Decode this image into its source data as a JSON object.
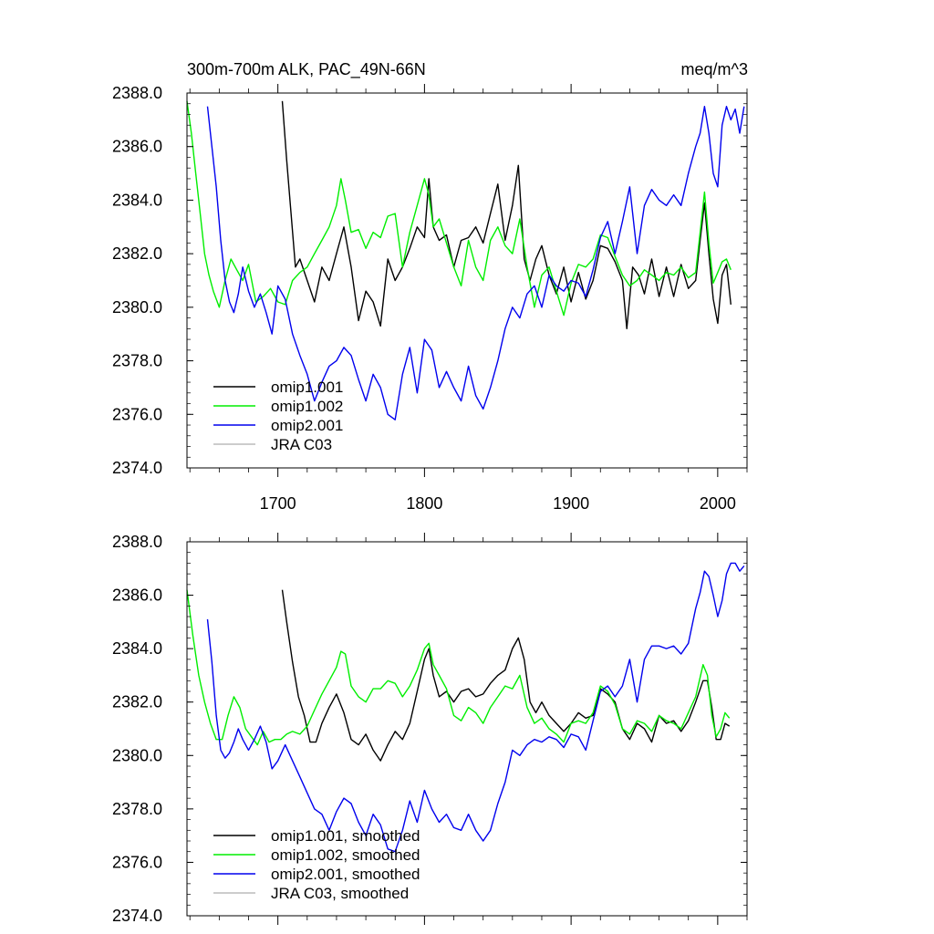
{
  "chart_data": [
    {
      "type": "line",
      "title": "300m-700m ALK, PAC_49N-66N",
      "units": "meq/m^3",
      "ylim": [
        2374.0,
        2388.0
      ],
      "xlim": [
        1638,
        2020
      ],
      "yticks": [
        "2388.0",
        "2386.0",
        "2384.0",
        "2382.0",
        "2380.0",
        "2378.0",
        "2376.0",
        "2374.0"
      ],
      "xticks": [
        "1700",
        "1800",
        "1900",
        "2000"
      ],
      "legend": [
        "omip1.001",
        "omip1.002",
        "omip2.001",
        "JRA C03"
      ],
      "series": [
        {
          "name": "omip1.001",
          "color": "#000000",
          "x": [
            1703,
            1706,
            1709,
            1712,
            1715,
            1720,
            1725,
            1730,
            1735,
            1740,
            1745,
            1750,
            1755,
            1760,
            1765,
            1770,
            1775,
            1780,
            1785,
            1790,
            1795,
            1800,
            1803,
            1806,
            1810,
            1815,
            1820,
            1825,
            1830,
            1835,
            1840,
            1845,
            1850,
            1855,
            1860,
            1864,
            1868,
            1872,
            1876,
            1880,
            1885,
            1890,
            1895,
            1900,
            1905,
            1910,
            1915,
            1920,
            1925,
            1930,
            1935,
            1938,
            1942,
            1946,
            1950,
            1955,
            1960,
            1965,
            1970,
            1975,
            1980,
            1985,
            1988,
            1991,
            1994,
            1997,
            2000,
            2003,
            2006,
            2009
          ],
          "y": [
            2387.7,
            2385.5,
            2383.5,
            2381.5,
            2381.8,
            2381.0,
            2380.2,
            2381.5,
            2381.0,
            2382.0,
            2383.0,
            2381.5,
            2379.5,
            2380.6,
            2380.2,
            2379.3,
            2381.8,
            2381.0,
            2381.5,
            2382.2,
            2383.0,
            2382.6,
            2384.8,
            2383.0,
            2382.5,
            2382.7,
            2381.5,
            2382.5,
            2382.6,
            2383.0,
            2382.4,
            2383.5,
            2384.6,
            2382.5,
            2383.8,
            2385.3,
            2381.8,
            2381.0,
            2381.8,
            2382.3,
            2381.2,
            2380.5,
            2381.5,
            2380.2,
            2381.3,
            2380.3,
            2381.0,
            2382.3,
            2382.2,
            2381.7,
            2381.0,
            2379.2,
            2381.5,
            2381.2,
            2380.5,
            2381.8,
            2380.4,
            2381.5,
            2380.4,
            2381.6,
            2380.7,
            2381.0,
            2382.5,
            2383.9,
            2382.0,
            2380.3,
            2379.4,
            2381.2,
            2381.6,
            2380.1
          ]
        },
        {
          "name": "omip1.002",
          "color": "#00ee00",
          "x": [
            1638,
            1641,
            1644,
            1647,
            1650,
            1653,
            1656,
            1660,
            1664,
            1668,
            1672,
            1676,
            1680,
            1685,
            1690,
            1695,
            1700,
            1705,
            1710,
            1715,
            1720,
            1725,
            1730,
            1735,
            1740,
            1743,
            1746,
            1750,
            1755,
            1760,
            1765,
            1770,
            1775,
            1780,
            1785,
            1790,
            1795,
            1800,
            1803,
            1806,
            1810,
            1815,
            1820,
            1825,
            1830,
            1835,
            1840,
            1845,
            1850,
            1855,
            1860,
            1865,
            1870,
            1875,
            1880,
            1885,
            1890,
            1895,
            1900,
            1905,
            1910,
            1915,
            1920,
            1925,
            1930,
            1935,
            1940,
            1945,
            1950,
            1955,
            1960,
            1965,
            1970,
            1975,
            1980,
            1985,
            1988,
            1991,
            1994,
            1997,
            2000,
            2003,
            2006,
            2009
          ],
          "y": [
            2387.7,
            2386.5,
            2385.0,
            2383.5,
            2382.0,
            2381.2,
            2380.6,
            2380.0,
            2381.0,
            2381.8,
            2381.4,
            2381.0,
            2381.6,
            2380.2,
            2380.4,
            2380.7,
            2380.2,
            2380.1,
            2381.0,
            2381.3,
            2381.5,
            2382.0,
            2382.5,
            2383.0,
            2383.8,
            2384.8,
            2384.0,
            2382.8,
            2382.9,
            2382.2,
            2382.8,
            2382.6,
            2383.4,
            2383.5,
            2381.5,
            2382.8,
            2383.8,
            2384.8,
            2384.2,
            2383.0,
            2383.3,
            2382.4,
            2381.5,
            2380.8,
            2382.5,
            2381.5,
            2381.0,
            2382.5,
            2383.0,
            2382.3,
            2382.0,
            2383.3,
            2381.5,
            2380.0,
            2381.2,
            2381.5,
            2380.6,
            2379.7,
            2380.9,
            2381.6,
            2381.5,
            2381.8,
            2382.7,
            2382.6,
            2381.9,
            2381.2,
            2380.8,
            2381.0,
            2381.4,
            2381.2,
            2381.0,
            2381.3,
            2381.2,
            2381.5,
            2381.1,
            2381.3,
            2382.8,
            2384.3,
            2382.4,
            2380.9,
            2381.3,
            2381.7,
            2381.8,
            2381.4
          ]
        },
        {
          "name": "omip2.001",
          "color": "#0000ee",
          "x": [
            1652,
            1655,
            1658,
            1661,
            1664,
            1667,
            1670,
            1673,
            1676,
            1680,
            1684,
            1688,
            1692,
            1696,
            1700,
            1705,
            1710,
            1715,
            1720,
            1725,
            1730,
            1735,
            1740,
            1745,
            1750,
            1755,
            1760,
            1765,
            1770,
            1775,
            1780,
            1785,
            1790,
            1795,
            1800,
            1805,
            1810,
            1815,
            1820,
            1825,
            1830,
            1835,
            1840,
            1845,
            1850,
            1855,
            1860,
            1865,
            1870,
            1875,
            1880,
            1885,
            1890,
            1895,
            1900,
            1905,
            1910,
            1915,
            1920,
            1925,
            1930,
            1935,
            1940,
            1945,
            1950,
            1955,
            1960,
            1965,
            1970,
            1975,
            1980,
            1985,
            1988,
            1991,
            1994,
            1997,
            2000,
            2003,
            2006,
            2009,
            2012,
            2015,
            2018
          ],
          "y": [
            2387.5,
            2386.0,
            2384.5,
            2382.5,
            2381.0,
            2380.2,
            2379.8,
            2380.5,
            2381.5,
            2380.6,
            2380.0,
            2380.5,
            2379.8,
            2379.0,
            2380.8,
            2380.3,
            2379.0,
            2378.2,
            2377.5,
            2376.5,
            2377.2,
            2377.8,
            2378.0,
            2378.5,
            2378.2,
            2377.3,
            2376.5,
            2377.5,
            2377.0,
            2376.0,
            2375.8,
            2377.5,
            2378.5,
            2376.8,
            2378.8,
            2378.4,
            2377.0,
            2377.6,
            2377.0,
            2376.5,
            2377.8,
            2376.7,
            2376.2,
            2377.0,
            2378.0,
            2379.2,
            2380.0,
            2379.6,
            2380.5,
            2380.8,
            2380.0,
            2381.2,
            2380.8,
            2380.6,
            2381.0,
            2380.9,
            2380.4,
            2381.4,
            2382.6,
            2383.2,
            2382.0,
            2383.2,
            2384.5,
            2382.0,
            2383.8,
            2384.4,
            2384.0,
            2383.8,
            2384.2,
            2383.8,
            2385.0,
            2386.0,
            2386.5,
            2387.5,
            2386.5,
            2385.0,
            2384.5,
            2386.8,
            2387.5,
            2387.0,
            2387.4,
            2386.5,
            2387.5
          ]
        }
      ]
    },
    {
      "type": "line",
      "title": "",
      "ylim": [
        2374.0,
        2388.0
      ],
      "xlim": [
        1638,
        2020
      ],
      "yticks": [
        "2388.0",
        "2386.0",
        "2384.0",
        "2382.0",
        "2380.0",
        "2378.0",
        "2376.0",
        "2374.0"
      ],
      "legend": [
        "omip1.001, smoothed",
        "omip1.002, smoothed",
        "omip2.001, smoothed",
        "JRA C03, smoothed"
      ],
      "series": [
        {
          "name": "omip1.001, smoothed",
          "color": "#000000",
          "x": [
            1703,
            1706,
            1710,
            1714,
            1718,
            1722,
            1726,
            1730,
            1735,
            1740,
            1745,
            1750,
            1755,
            1760,
            1765,
            1770,
            1775,
            1780,
            1785,
            1790,
            1795,
            1800,
            1803,
            1806,
            1810,
            1815,
            1820,
            1825,
            1830,
            1835,
            1840,
            1845,
            1850,
            1855,
            1860,
            1864,
            1868,
            1872,
            1876,
            1880,
            1885,
            1890,
            1895,
            1900,
            1905,
            1910,
            1915,
            1920,
            1925,
            1930,
            1935,
            1940,
            1945,
            1950,
            1955,
            1960,
            1965,
            1970,
            1975,
            1980,
            1985,
            1990,
            1993,
            1996,
            1999,
            2002,
            2005,
            2008
          ],
          "y": [
            2386.2,
            2385.0,
            2383.5,
            2382.2,
            2381.5,
            2380.5,
            2380.5,
            2381.2,
            2381.8,
            2382.3,
            2381.6,
            2380.6,
            2380.4,
            2380.8,
            2380.2,
            2379.8,
            2380.4,
            2380.9,
            2380.6,
            2381.2,
            2382.4,
            2383.6,
            2384.0,
            2383.0,
            2382.2,
            2382.4,
            2382.0,
            2382.4,
            2382.5,
            2382.2,
            2382.3,
            2382.7,
            2383.0,
            2383.2,
            2384.0,
            2384.4,
            2383.6,
            2382.0,
            2381.6,
            2382.0,
            2381.5,
            2381.2,
            2380.9,
            2381.2,
            2381.6,
            2381.4,
            2381.5,
            2382.5,
            2382.3,
            2382.0,
            2381.0,
            2380.6,
            2381.2,
            2381.0,
            2380.5,
            2381.5,
            2381.2,
            2381.3,
            2380.9,
            2381.3,
            2382.0,
            2382.8,
            2382.8,
            2381.8,
            2380.6,
            2380.6,
            2381.2,
            2381.1
          ]
        },
        {
          "name": "omip1.002, smoothed",
          "color": "#00ee00",
          "x": [
            1638,
            1642,
            1646,
            1650,
            1654,
            1658,
            1662,
            1666,
            1670,
            1674,
            1678,
            1682,
            1686,
            1690,
            1694,
            1698,
            1702,
            1706,
            1710,
            1715,
            1720,
            1725,
            1730,
            1735,
            1740,
            1743,
            1746,
            1750,
            1755,
            1760,
            1765,
            1770,
            1775,
            1780,
            1785,
            1790,
            1795,
            1800,
            1803,
            1806,
            1810,
            1815,
            1820,
            1825,
            1830,
            1835,
            1840,
            1845,
            1850,
            1855,
            1860,
            1865,
            1870,
            1875,
            1880,
            1885,
            1890,
            1895,
            1900,
            1905,
            1910,
            1915,
            1920,
            1925,
            1930,
            1935,
            1940,
            1945,
            1950,
            1955,
            1960,
            1965,
            1970,
            1975,
            1980,
            1985,
            1990,
            1993,
            1996,
            1999,
            2002,
            2005,
            2008
          ],
          "y": [
            2386.2,
            2384.5,
            2383.0,
            2382.0,
            2381.2,
            2380.6,
            2380.6,
            2381.5,
            2382.2,
            2381.8,
            2381.0,
            2380.7,
            2380.4,
            2380.9,
            2380.5,
            2380.6,
            2380.6,
            2380.8,
            2380.9,
            2380.8,
            2381.1,
            2381.7,
            2382.3,
            2382.8,
            2383.3,
            2383.9,
            2383.8,
            2382.6,
            2382.2,
            2382.0,
            2382.5,
            2382.5,
            2382.8,
            2382.7,
            2382.2,
            2382.6,
            2383.2,
            2384.0,
            2384.2,
            2383.4,
            2383.0,
            2382.5,
            2381.5,
            2381.3,
            2381.8,
            2381.6,
            2381.2,
            2381.8,
            2382.2,
            2382.6,
            2382.5,
            2383.0,
            2381.8,
            2381.2,
            2381.4,
            2381.0,
            2380.8,
            2380.5,
            2381.2,
            2381.3,
            2381.2,
            2381.6,
            2382.6,
            2382.4,
            2381.9,
            2381.0,
            2380.8,
            2381.3,
            2381.2,
            2380.9,
            2381.5,
            2381.3,
            2381.2,
            2381.0,
            2381.6,
            2382.2,
            2383.4,
            2383.0,
            2381.5,
            2380.7,
            2381.0,
            2381.6,
            2381.4
          ]
        },
        {
          "name": "omip2.001, smoothed",
          "color": "#0000ee",
          "x": [
            1652,
            1655,
            1658,
            1661,
            1664,
            1667,
            1670,
            1673,
            1676,
            1680,
            1684,
            1688,
            1692,
            1696,
            1700,
            1705,
            1710,
            1715,
            1720,
            1725,
            1730,
            1735,
            1740,
            1745,
            1750,
            1755,
            1760,
            1765,
            1770,
            1775,
            1780,
            1785,
            1790,
            1795,
            1800,
            1805,
            1810,
            1815,
            1820,
            1825,
            1830,
            1835,
            1840,
            1845,
            1850,
            1855,
            1860,
            1865,
            1870,
            1875,
            1880,
            1885,
            1890,
            1895,
            1900,
            1905,
            1910,
            1915,
            1920,
            1925,
            1930,
            1935,
            1940,
            1945,
            1950,
            1955,
            1960,
            1965,
            1970,
            1975,
            1980,
            1985,
            1988,
            1991,
            1994,
            1997,
            2000,
            2003,
            2006,
            2009,
            2012,
            2015,
            2018
          ],
          "y": [
            2385.1,
            2383.5,
            2381.5,
            2380.2,
            2379.9,
            2380.1,
            2380.5,
            2381.0,
            2380.6,
            2380.2,
            2380.6,
            2381.1,
            2380.5,
            2379.5,
            2379.8,
            2380.4,
            2379.8,
            2379.2,
            2378.6,
            2378.0,
            2377.8,
            2377.2,
            2377.9,
            2378.4,
            2378.2,
            2377.5,
            2377.0,
            2377.8,
            2377.4,
            2376.5,
            2376.4,
            2377.2,
            2378.3,
            2377.5,
            2378.7,
            2378.0,
            2377.5,
            2377.8,
            2377.3,
            2377.2,
            2377.8,
            2377.2,
            2376.8,
            2377.2,
            2378.2,
            2379.0,
            2380.2,
            2380.0,
            2380.4,
            2380.6,
            2380.5,
            2380.7,
            2380.6,
            2380.3,
            2380.8,
            2380.7,
            2380.2,
            2381.3,
            2382.4,
            2382.6,
            2382.2,
            2382.6,
            2383.6,
            2382.0,
            2383.6,
            2384.1,
            2384.1,
            2384.0,
            2384.1,
            2383.8,
            2384.2,
            2385.5,
            2386.1,
            2386.9,
            2386.7,
            2386.0,
            2385.2,
            2385.8,
            2386.8,
            2387.2,
            2387.2,
            2386.9,
            2387.1
          ]
        }
      ]
    }
  ]
}
